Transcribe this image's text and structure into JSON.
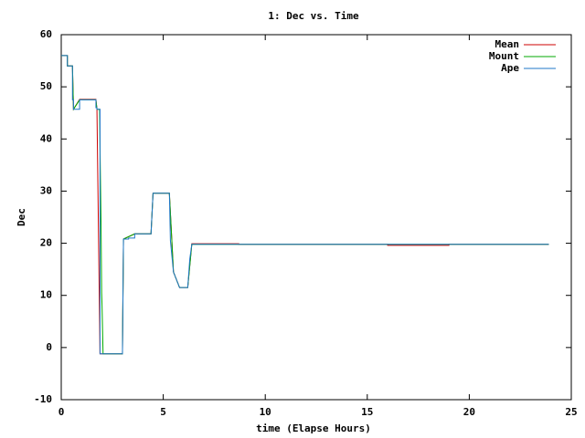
{
  "chart_data": {
    "type": "line",
    "title": "1: Dec vs. Time",
    "x_label": "time (Elapse Hours)",
    "y_label": "Dec",
    "xlim": [
      0,
      25
    ],
    "xticks": [
      0,
      5,
      10,
      15,
      20,
      25
    ],
    "ylim": [
      -10,
      60
    ],
    "yticks": [
      -10,
      0,
      10,
      20,
      30,
      40,
      50,
      60
    ],
    "legend": "top-right",
    "series": [
      {
        "name": "Mean",
        "color": "#cc0000",
        "x": [
          0,
          0.3,
          0.3,
          0.55,
          0.6,
          0.9,
          1.7,
          1.75,
          1.9,
          3.0,
          3.05,
          3.6,
          4.4,
          4.5,
          5.3,
          5.5,
          5.8,
          6.2,
          6.4,
          8.7,
          8.7,
          16,
          16,
          19,
          19,
          23.9
        ],
        "values": [
          56,
          56,
          54,
          54,
          45.7,
          47.6,
          47.6,
          45.7,
          -1.2,
          -1.2,
          20.8,
          21.8,
          21.8,
          29.6,
          29.6,
          14.5,
          11.5,
          11.5,
          19.9,
          19.9,
          19.8,
          19.8,
          19.6,
          19.6,
          19.8,
          19.8
        ]
      },
      {
        "name": "Mount",
        "color": "#00aa00",
        "x": [
          0,
          0.3,
          0.3,
          0.55,
          0.6,
          0.9,
          1.7,
          1.75,
          1.88,
          1.9,
          1.95,
          1.98,
          2.0,
          2.05,
          3.0,
          3.05,
          3.6,
          4.4,
          4.5,
          5.3,
          5.5,
          5.8,
          6.2,
          6.4,
          23.9
        ],
        "values": [
          56,
          56,
          54,
          54,
          45.7,
          47.5,
          47.5,
          45.7,
          45.7,
          38.5,
          24,
          10.5,
          8,
          -1.2,
          -1.2,
          20.8,
          21.8,
          21.8,
          29.6,
          29.6,
          14.5,
          11.5,
          11.5,
          19.8,
          19.8
        ]
      },
      {
        "name": "Ape",
        "color": "#1f77c8",
        "x": [
          0,
          0.3,
          0.3,
          0.55,
          0.55,
          0.6,
          0.6,
          0.9,
          0.9,
          1.7,
          1.7,
          1.75,
          1.75,
          1.9,
          1.9,
          3.0,
          3.05,
          3.3,
          3.3,
          3.6,
          3.6,
          4.4,
          4.5,
          5.3,
          5.35,
          5.5,
          5.8,
          6.2,
          6.3,
          6.4,
          23.9
        ],
        "values": [
          56,
          56,
          54,
          54,
          47.5,
          47.5,
          45.7,
          45.7,
          47.5,
          47.5,
          46,
          46,
          45.7,
          45.7,
          -1.2,
          -1.2,
          20.8,
          20.8,
          21,
          21,
          21.8,
          21.8,
          29.6,
          29.6,
          20.5,
          14.5,
          11.5,
          11.5,
          17,
          19.8,
          19.8
        ]
      }
    ]
  }
}
